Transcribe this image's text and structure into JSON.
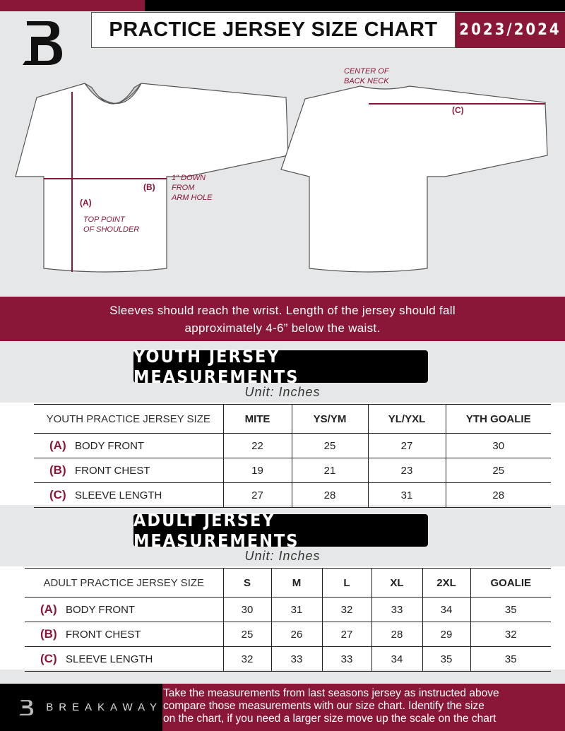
{
  "header": {
    "title": "PRACTICE JERSEY SIZE CHART",
    "season": "2023/2024",
    "logo_letter": "B"
  },
  "diagram": {
    "label_a": "(A)",
    "label_b": "(B)",
    "label_c": "(C)",
    "note_a": [
      "TOP POINT",
      "OF SHOULDER"
    ],
    "note_b": [
      "1\" DOWN",
      "FROM",
      "ARM HOLE"
    ],
    "note_c": [
      "CENTER OF",
      "BACK NECK"
    ]
  },
  "instruction": [
    "Sleeves should reach the wrist. Length of the jersey should fall",
    "approximately 4-6” below the waist."
  ],
  "youth": {
    "title": "YOUTH JERSEY MEASUREMENTS",
    "unit": "Unit: Inches",
    "header": "YOUTH PRACTICE JERSEY SIZE",
    "sizes": [
      "MITE",
      "YS/YM",
      "YL/YXL",
      "YTH GOALIE"
    ],
    "rows": [
      {
        "letter": "(A)",
        "label": "BODY FRONT",
        "values": [
          "22",
          "25",
          "27",
          "30"
        ]
      },
      {
        "letter": "(B)",
        "label": "FRONT CHEST",
        "values": [
          "19",
          "21",
          "23",
          "25"
        ]
      },
      {
        "letter": "(C)",
        "label": "SLEEVE LENGTH",
        "values": [
          "27",
          "28",
          "31",
          "28"
        ]
      }
    ]
  },
  "adult": {
    "title": "ADULT JERSEY MEASUREMENTS",
    "unit": "Unit: Inches",
    "header": "ADULT PRACTICE JERSEY SIZE",
    "sizes": [
      "S",
      "M",
      "L",
      "XL",
      "2XL",
      "GOALIE"
    ],
    "rows": [
      {
        "letter": "(A)",
        "label": "BODY FRONT",
        "values": [
          "30",
          "31",
          "32",
          "33",
          "34",
          "35"
        ]
      },
      {
        "letter": "(B)",
        "label": "FRONT CHEST",
        "values": [
          "25",
          "26",
          "27",
          "28",
          "29",
          "32"
        ]
      },
      {
        "letter": "(C)",
        "label": "SLEEVE LENGTH",
        "values": [
          "32",
          "33",
          "33",
          "34",
          "35",
          "35"
        ]
      }
    ]
  },
  "footer": {
    "brand": "BREAKAWAY",
    "text": [
      "Take the measurements from last seasons jersey as instructed above",
      "compare those measurements  with our size chart. Identify the size",
      "on the chart, if you need a larger size move up the scale on the chart"
    ]
  },
  "colors": {
    "accent": "#8a1738",
    "dark": "#000000",
    "background": "#e6e7e8"
  }
}
